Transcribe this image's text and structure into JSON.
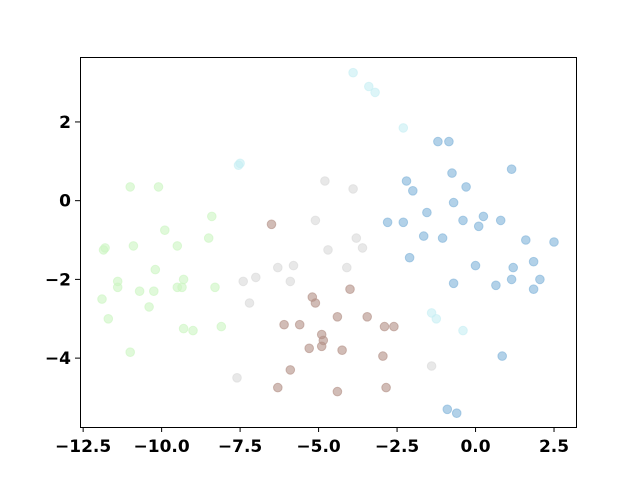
{
  "chart_data": {
    "type": "scatter",
    "title": "",
    "xlabel": "",
    "ylabel": "",
    "xlim": [
      -12.6,
      3.2
    ],
    "ylim": [
      -5.75,
      3.65
    ],
    "grid": false,
    "x_ticks": [
      -12.5,
      -10.0,
      -7.5,
      -5.0,
      -2.5,
      0.0,
      2.5
    ],
    "x_tick_labels": [
      "−12.5",
      "−10.0",
      "−7.5",
      "−5.0",
      "−2.5",
      "0.0",
      "2.5"
    ],
    "y_ticks": [
      -4,
      -2,
      0,
      2
    ],
    "y_tick_labels": [
      "−4",
      "−2",
      "0",
      "2"
    ],
    "marker_opacity": 0.6,
    "series": [
      {
        "color": "#ccf5c2",
        "points": [
          [
            -11.0,
            0.35
          ],
          [
            -10.1,
            0.35
          ],
          [
            -9.9,
            -0.75
          ],
          [
            -8.4,
            -0.4
          ],
          [
            -8.5,
            -0.95
          ],
          [
            -11.8,
            -1.2
          ],
          [
            -11.85,
            -1.25
          ],
          [
            -10.9,
            -1.15
          ],
          [
            -9.5,
            -1.15
          ],
          [
            -10.2,
            -1.75
          ],
          [
            -11.4,
            -2.05
          ],
          [
            -11.4,
            -2.2
          ],
          [
            -9.3,
            -2.0
          ],
          [
            -9.35,
            -2.2
          ],
          [
            -9.5,
            -2.2
          ],
          [
            -10.25,
            -2.3
          ],
          [
            -10.7,
            -2.3
          ],
          [
            -8.3,
            -2.2
          ],
          [
            -11.9,
            -2.5
          ],
          [
            -10.4,
            -2.7
          ],
          [
            -11.7,
            -3.0
          ],
          [
            -8.1,
            -3.2
          ],
          [
            -9.3,
            -3.25
          ],
          [
            -9.0,
            -3.3
          ],
          [
            -11.0,
            -3.85
          ]
        ]
      },
      {
        "color": "#c7eff3",
        "points": [
          [
            -3.9,
            3.25
          ],
          [
            -3.4,
            2.9
          ],
          [
            -3.2,
            2.75
          ],
          [
            -2.3,
            1.85
          ],
          [
            -7.5,
            0.95
          ],
          [
            -7.55,
            0.9
          ],
          [
            -1.4,
            -2.85
          ],
          [
            -1.25,
            -3.0
          ],
          [
            -0.4,
            -3.3
          ]
        ]
      },
      {
        "color": "#d9d9d9",
        "points": [
          [
            -4.8,
            0.5
          ],
          [
            -3.9,
            0.3
          ],
          [
            -5.1,
            -0.5
          ],
          [
            -3.8,
            -0.95
          ],
          [
            -3.6,
            -1.2
          ],
          [
            -4.7,
            -1.25
          ],
          [
            -5.8,
            -1.65
          ],
          [
            -6.3,
            -1.7
          ],
          [
            -4.1,
            -1.7
          ],
          [
            -7.4,
            -2.05
          ],
          [
            -7.0,
            -1.95
          ],
          [
            -5.9,
            -2.05
          ],
          [
            -7.2,
            -2.6
          ],
          [
            -7.6,
            -4.5
          ],
          [
            -1.4,
            -4.2
          ]
        ]
      },
      {
        "color": "#b38f85",
        "points": [
          [
            -6.5,
            -0.6
          ],
          [
            -4.0,
            -2.25
          ],
          [
            -5.2,
            -2.45
          ],
          [
            -5.1,
            -2.6
          ],
          [
            -4.4,
            -2.95
          ],
          [
            -3.45,
            -2.95
          ],
          [
            -6.1,
            -3.15
          ],
          [
            -5.6,
            -3.15
          ],
          [
            -2.9,
            -3.2
          ],
          [
            -2.6,
            -3.2
          ],
          [
            -4.9,
            -3.4
          ],
          [
            -4.85,
            -3.55
          ],
          [
            -5.3,
            -3.75
          ],
          [
            -4.9,
            -3.7
          ],
          [
            -4.25,
            -3.8
          ],
          [
            -2.95,
            -3.95
          ],
          [
            -5.9,
            -4.3
          ],
          [
            -6.3,
            -4.75
          ],
          [
            -2.85,
            -4.75
          ],
          [
            -4.4,
            -4.85
          ]
        ]
      },
      {
        "color": "#7fb2d9",
        "points": [
          [
            -1.2,
            1.5
          ],
          [
            -0.85,
            1.5
          ],
          [
            -0.75,
            0.7
          ],
          [
            1.15,
            0.8
          ],
          [
            -2.2,
            0.5
          ],
          [
            -0.3,
            0.35
          ],
          [
            -2.0,
            0.25
          ],
          [
            -0.7,
            -0.05
          ],
          [
            -1.55,
            -0.3
          ],
          [
            -2.8,
            -0.55
          ],
          [
            -2.3,
            -0.55
          ],
          [
            -0.4,
            -0.5
          ],
          [
            0.25,
            -0.4
          ],
          [
            0.8,
            -0.5
          ],
          [
            0.1,
            -0.65
          ],
          [
            -1.65,
            -0.9
          ],
          [
            -1.05,
            -0.95
          ],
          [
            1.6,
            -1.0
          ],
          [
            2.5,
            -1.05
          ],
          [
            -2.1,
            -1.45
          ],
          [
            0.0,
            -1.65
          ],
          [
            1.2,
            -1.7
          ],
          [
            1.85,
            -1.55
          ],
          [
            -0.7,
            -2.1
          ],
          [
            0.65,
            -2.15
          ],
          [
            1.15,
            -2.0
          ],
          [
            2.05,
            -2.0
          ],
          [
            1.85,
            -2.25
          ],
          [
            0.85,
            -3.95
          ],
          [
            -0.9,
            -5.3
          ],
          [
            -0.6,
            -5.4
          ]
        ]
      }
    ]
  }
}
